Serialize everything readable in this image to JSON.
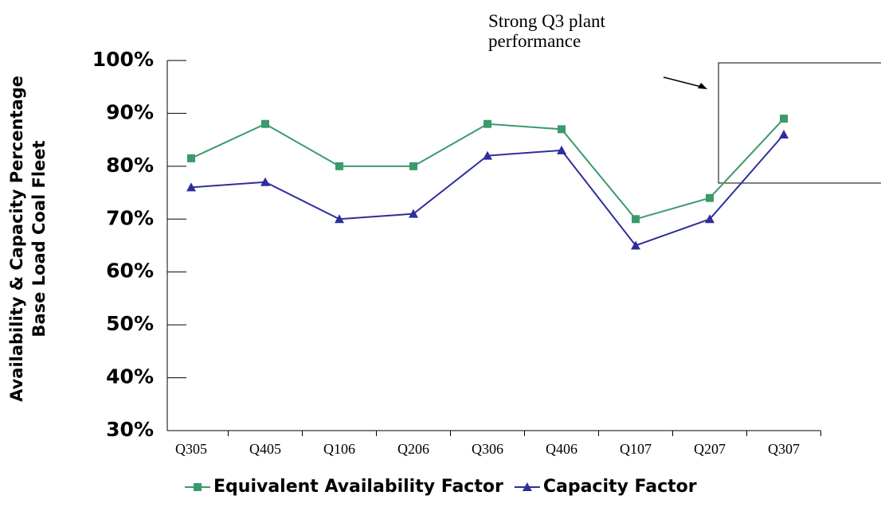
{
  "chart_data": {
    "type": "line",
    "y_label_lines": [
      "Availability & Capacity Percentage",
      "Base Load Coal Fleet"
    ],
    "annotation": "Strong Q3 plant performance",
    "categories": [
      "Q305",
      "Q405",
      "Q106",
      "Q206",
      "Q306",
      "Q406",
      "Q107",
      "Q207",
      "Q307"
    ],
    "series": [
      {
        "name": "Equivalent Availability Factor",
        "color": "#3a9a6a",
        "marker": "square",
        "values": [
          81.5,
          88,
          80,
          80,
          88,
          87,
          70,
          74,
          89
        ]
      },
      {
        "name": "Capacity Factor",
        "color": "#2e2e9a",
        "marker": "triangle",
        "values": [
          76,
          77,
          70,
          71,
          82,
          83,
          65,
          70,
          86
        ]
      }
    ],
    "ylim": [
      30,
      100
    ],
    "yticks": [
      {
        "value": 30,
        "label": "30%"
      },
      {
        "value": 40,
        "label": "40%"
      },
      {
        "value": 50,
        "label": "50%"
      },
      {
        "value": 60,
        "label": "60%"
      },
      {
        "value": 70,
        "label": "70%"
      },
      {
        "value": 80,
        "label": "80%"
      },
      {
        "value": 90,
        "label": "90%"
      },
      {
        "value": 100,
        "label": "100%"
      }
    ],
    "legend": "bottom"
  }
}
